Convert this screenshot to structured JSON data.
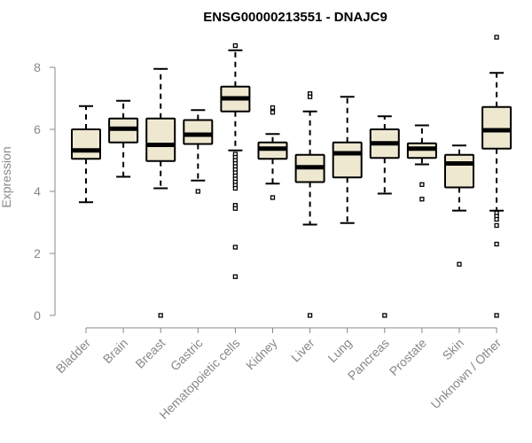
{
  "chart_data": {
    "type": "boxplot",
    "title": "ENSG00000213551 - DNAJC9",
    "ylabel": "Expression",
    "xlabel": "",
    "ylim": [
      0,
      9
    ],
    "yticks": [
      0,
      2,
      4,
      6,
      8
    ],
    "box_fill": "#efe8d0",
    "categories": [
      "Bladder",
      "Brain",
      "Breast",
      "Gastric",
      "Hematopoietic cells",
      "Kidney",
      "Liver",
      "Lung",
      "Pancreas",
      "Prostate",
      "Skin",
      "Unknown / Other"
    ],
    "boxes": [
      {
        "q1": 5.05,
        "median": 5.32,
        "q3": 6.0,
        "whisker_low": 3.65,
        "whisker_high": 6.75,
        "outliers": []
      },
      {
        "q1": 5.58,
        "median": 6.02,
        "q3": 6.35,
        "whisker_low": 4.47,
        "whisker_high": 6.92,
        "outliers": []
      },
      {
        "q1": 4.98,
        "median": 5.5,
        "q3": 6.35,
        "whisker_low": 4.1,
        "whisker_high": 7.95,
        "outliers": [
          0
        ]
      },
      {
        "q1": 5.53,
        "median": 5.83,
        "q3": 6.3,
        "whisker_low": 4.35,
        "whisker_high": 6.62,
        "outliers": [
          4.0
        ]
      },
      {
        "q1": 6.58,
        "median": 7.0,
        "q3": 7.38,
        "whisker_low": 5.32,
        "whisker_high": 8.55,
        "outliers": [
          8.7,
          5.2,
          5.1,
          5.0,
          4.9,
          4.8,
          4.7,
          4.6,
          4.5,
          4.4,
          4.3,
          4.2,
          4.1,
          3.55,
          3.45,
          2.2,
          1.25
        ]
      },
      {
        "q1": 5.05,
        "median": 5.38,
        "q3": 5.58,
        "whisker_low": 4.25,
        "whisker_high": 5.85,
        "outliers": [
          6.7,
          6.55,
          3.8
        ]
      },
      {
        "q1": 4.3,
        "median": 4.78,
        "q3": 5.18,
        "whisker_low": 2.93,
        "whisker_high": 6.58,
        "outliers": [
          7.15,
          7.05,
          0
        ]
      },
      {
        "q1": 4.45,
        "median": 5.23,
        "q3": 5.58,
        "whisker_low": 2.98,
        "whisker_high": 7.05,
        "outliers": []
      },
      {
        "q1": 5.08,
        "median": 5.55,
        "q3": 6.0,
        "whisker_low": 3.93,
        "whisker_high": 6.42,
        "outliers": [
          0
        ]
      },
      {
        "q1": 5.08,
        "median": 5.38,
        "q3": 5.55,
        "whisker_low": 4.87,
        "whisker_high": 6.13,
        "outliers": [
          4.22,
          3.75
        ]
      },
      {
        "q1": 4.13,
        "median": 4.9,
        "q3": 5.18,
        "whisker_low": 3.38,
        "whisker_high": 5.48,
        "outliers": [
          1.65
        ]
      },
      {
        "q1": 5.38,
        "median": 5.97,
        "q3": 6.72,
        "whisker_low": 3.38,
        "whisker_high": 7.82,
        "outliers": [
          8.97,
          3.3,
          3.2,
          3.1,
          2.9,
          2.3,
          0
        ]
      }
    ]
  }
}
